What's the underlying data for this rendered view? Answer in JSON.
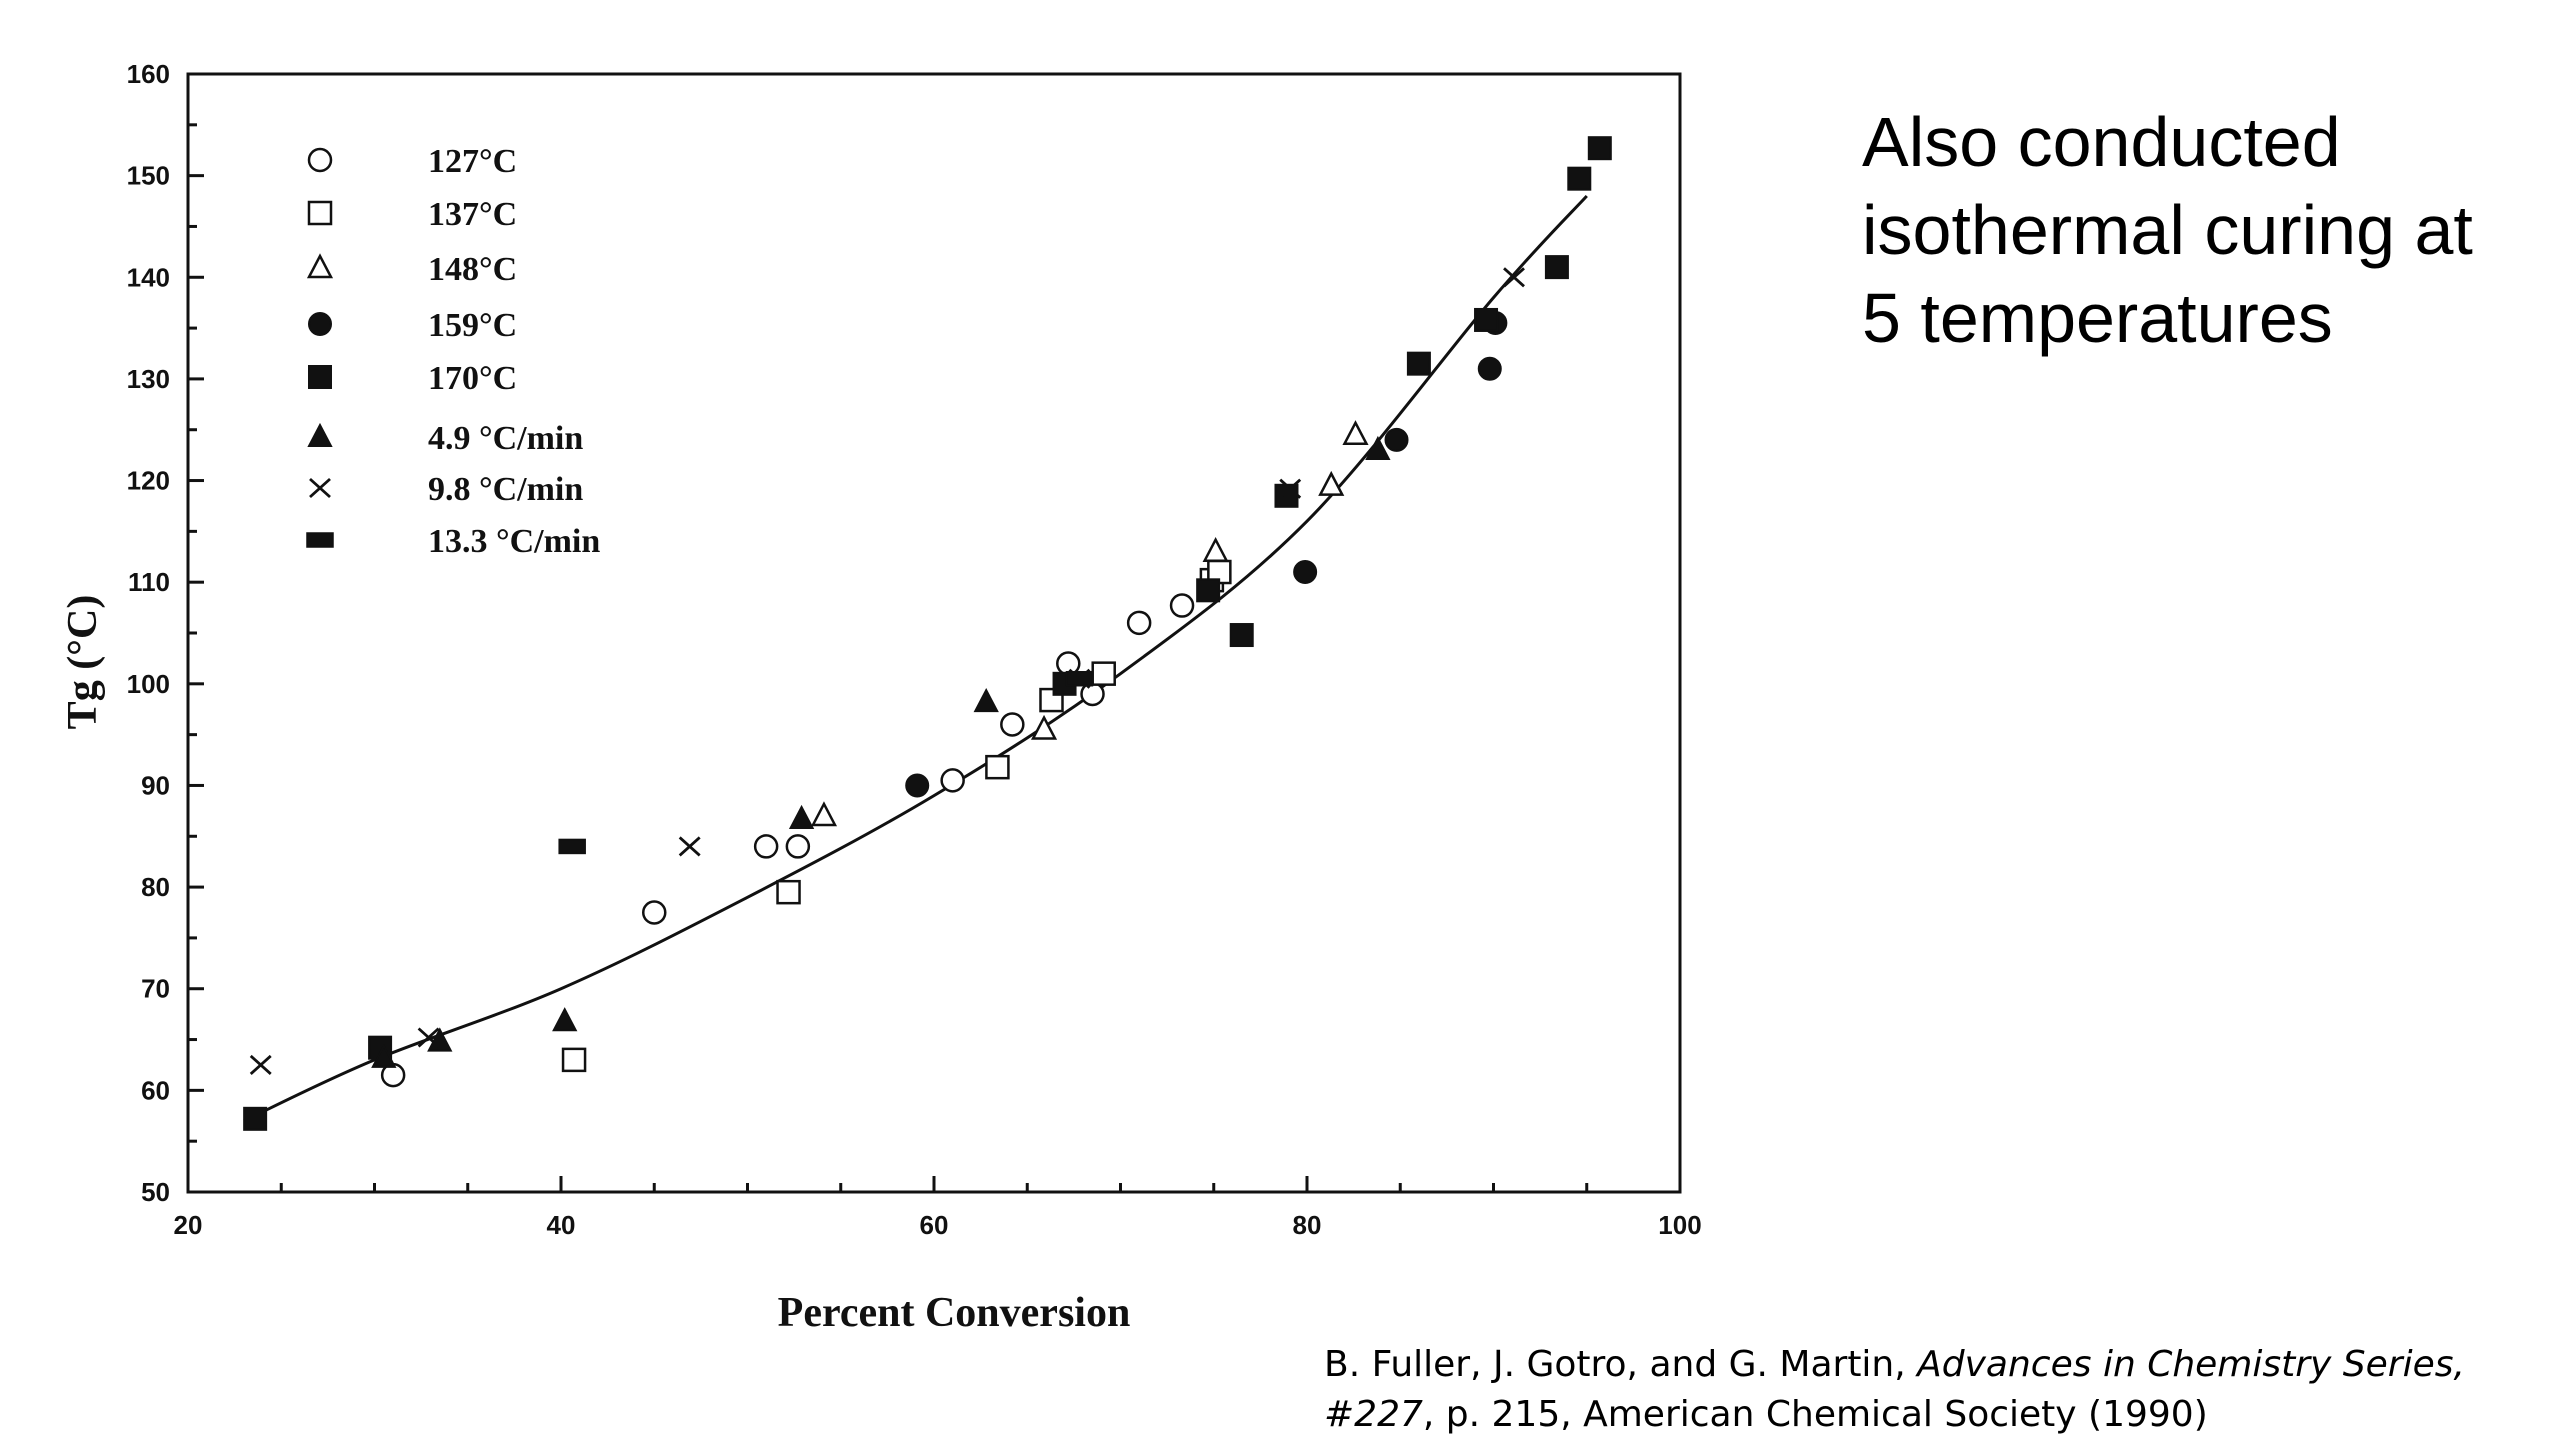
{
  "chart_data": {
    "type": "scatter",
    "title": "",
    "xlabel": "Percent Conversion",
    "ylabel": "Tg (°C)",
    "xlim": [
      20,
      100
    ],
    "ylim": [
      50,
      160
    ],
    "x_ticks": [
      "20",
      "40",
      "60",
      "80",
      "100"
    ],
    "y_ticks": [
      "50",
      "60",
      "70",
      "80",
      "90",
      "100",
      "110",
      "120",
      "130",
      "140",
      "150",
      "160"
    ],
    "grid": false,
    "legend_position": "top-left",
    "series": [
      {
        "name": "127°C",
        "marker": "circle-open",
        "points": [
          [
            31,
            61.5
          ],
          [
            45,
            77.5
          ],
          [
            51,
            84
          ],
          [
            52.7,
            84
          ],
          [
            61,
            90.5
          ],
          [
            64.2,
            96
          ],
          [
            67.2,
            102
          ],
          [
            68.5,
            99
          ],
          [
            71,
            106
          ],
          [
            73.3,
            107.7
          ]
        ]
      },
      {
        "name": "137°C",
        "marker": "square-open",
        "points": [
          [
            40.7,
            63
          ],
          [
            52.2,
            79.5
          ],
          [
            63.4,
            91.8
          ],
          [
            66.3,
            98.4
          ],
          [
            69.1,
            101
          ],
          [
            74.9,
            110.2
          ],
          [
            75.3,
            111
          ]
        ]
      },
      {
        "name": "148°C",
        "marker": "triangle-open",
        "points": [
          [
            54.1,
            87
          ],
          [
            65.9,
            95.5
          ],
          [
            75.1,
            113
          ],
          [
            81.3,
            119.5
          ],
          [
            82.6,
            124.5
          ]
        ]
      },
      {
        "name": "159°C",
        "marker": "circle-filled",
        "points": [
          [
            59.1,
            90
          ],
          [
            79.9,
            111
          ],
          [
            84.8,
            124
          ],
          [
            89.8,
            131
          ],
          [
            90.1,
            135.5
          ]
        ]
      },
      {
        "name": "170°C",
        "marker": "square-filled",
        "points": [
          [
            23.6,
            57.2
          ],
          [
            30.3,
            64.2
          ],
          [
            67,
            100
          ],
          [
            74.7,
            109.2
          ],
          [
            76.5,
            104.8
          ],
          [
            78.9,
            118.5
          ],
          [
            86,
            131.5
          ],
          [
            89.6,
            135.8
          ],
          [
            93.4,
            141
          ],
          [
            94.6,
            149.7
          ],
          [
            95.7,
            152.7
          ]
        ]
      },
      {
        "name": "4.9 °C/min",
        "marker": "triangle-filled",
        "points": [
          [
            30.5,
            63.2
          ],
          [
            33.5,
            64.8
          ],
          [
            40.2,
            66.8
          ],
          [
            52.9,
            86.7
          ],
          [
            62.8,
            98.2
          ],
          [
            83.8,
            123
          ]
        ]
      },
      {
        "name": "9.8 °C/min",
        "marker": "cross",
        "points": [
          [
            23.9,
            62.5
          ],
          [
            32.9,
            65.2
          ],
          [
            46.9,
            84
          ],
          [
            67.8,
            100.5
          ],
          [
            79.1,
            119.2
          ],
          [
            91.1,
            140
          ]
        ]
      },
      {
        "name": "13.3 °C/min",
        "marker": "bar-filled",
        "points": [
          [
            40.6,
            84
          ],
          [
            67.8,
            100.5
          ]
        ]
      }
    ],
    "fit_curve": {
      "x": [
        23,
        30,
        40,
        50,
        60,
        70,
        80,
        90,
        95
      ],
      "y": [
        57,
        63,
        70,
        79,
        89,
        101,
        116,
        138,
        148
      ]
    }
  },
  "side_note": {
    "lines": [
      "Also conducted",
      "isothermal curing at",
      "5 temperatures"
    ]
  },
  "citation": {
    "line1_plain": "B. Fuller, J. Gotro, and G. Martin, ",
    "line1_italic": "Advances in Chemistry Series,",
    "line2_italic": "#227",
    "line2_plain": ", p. 215, American Chemical Society (1990)"
  }
}
